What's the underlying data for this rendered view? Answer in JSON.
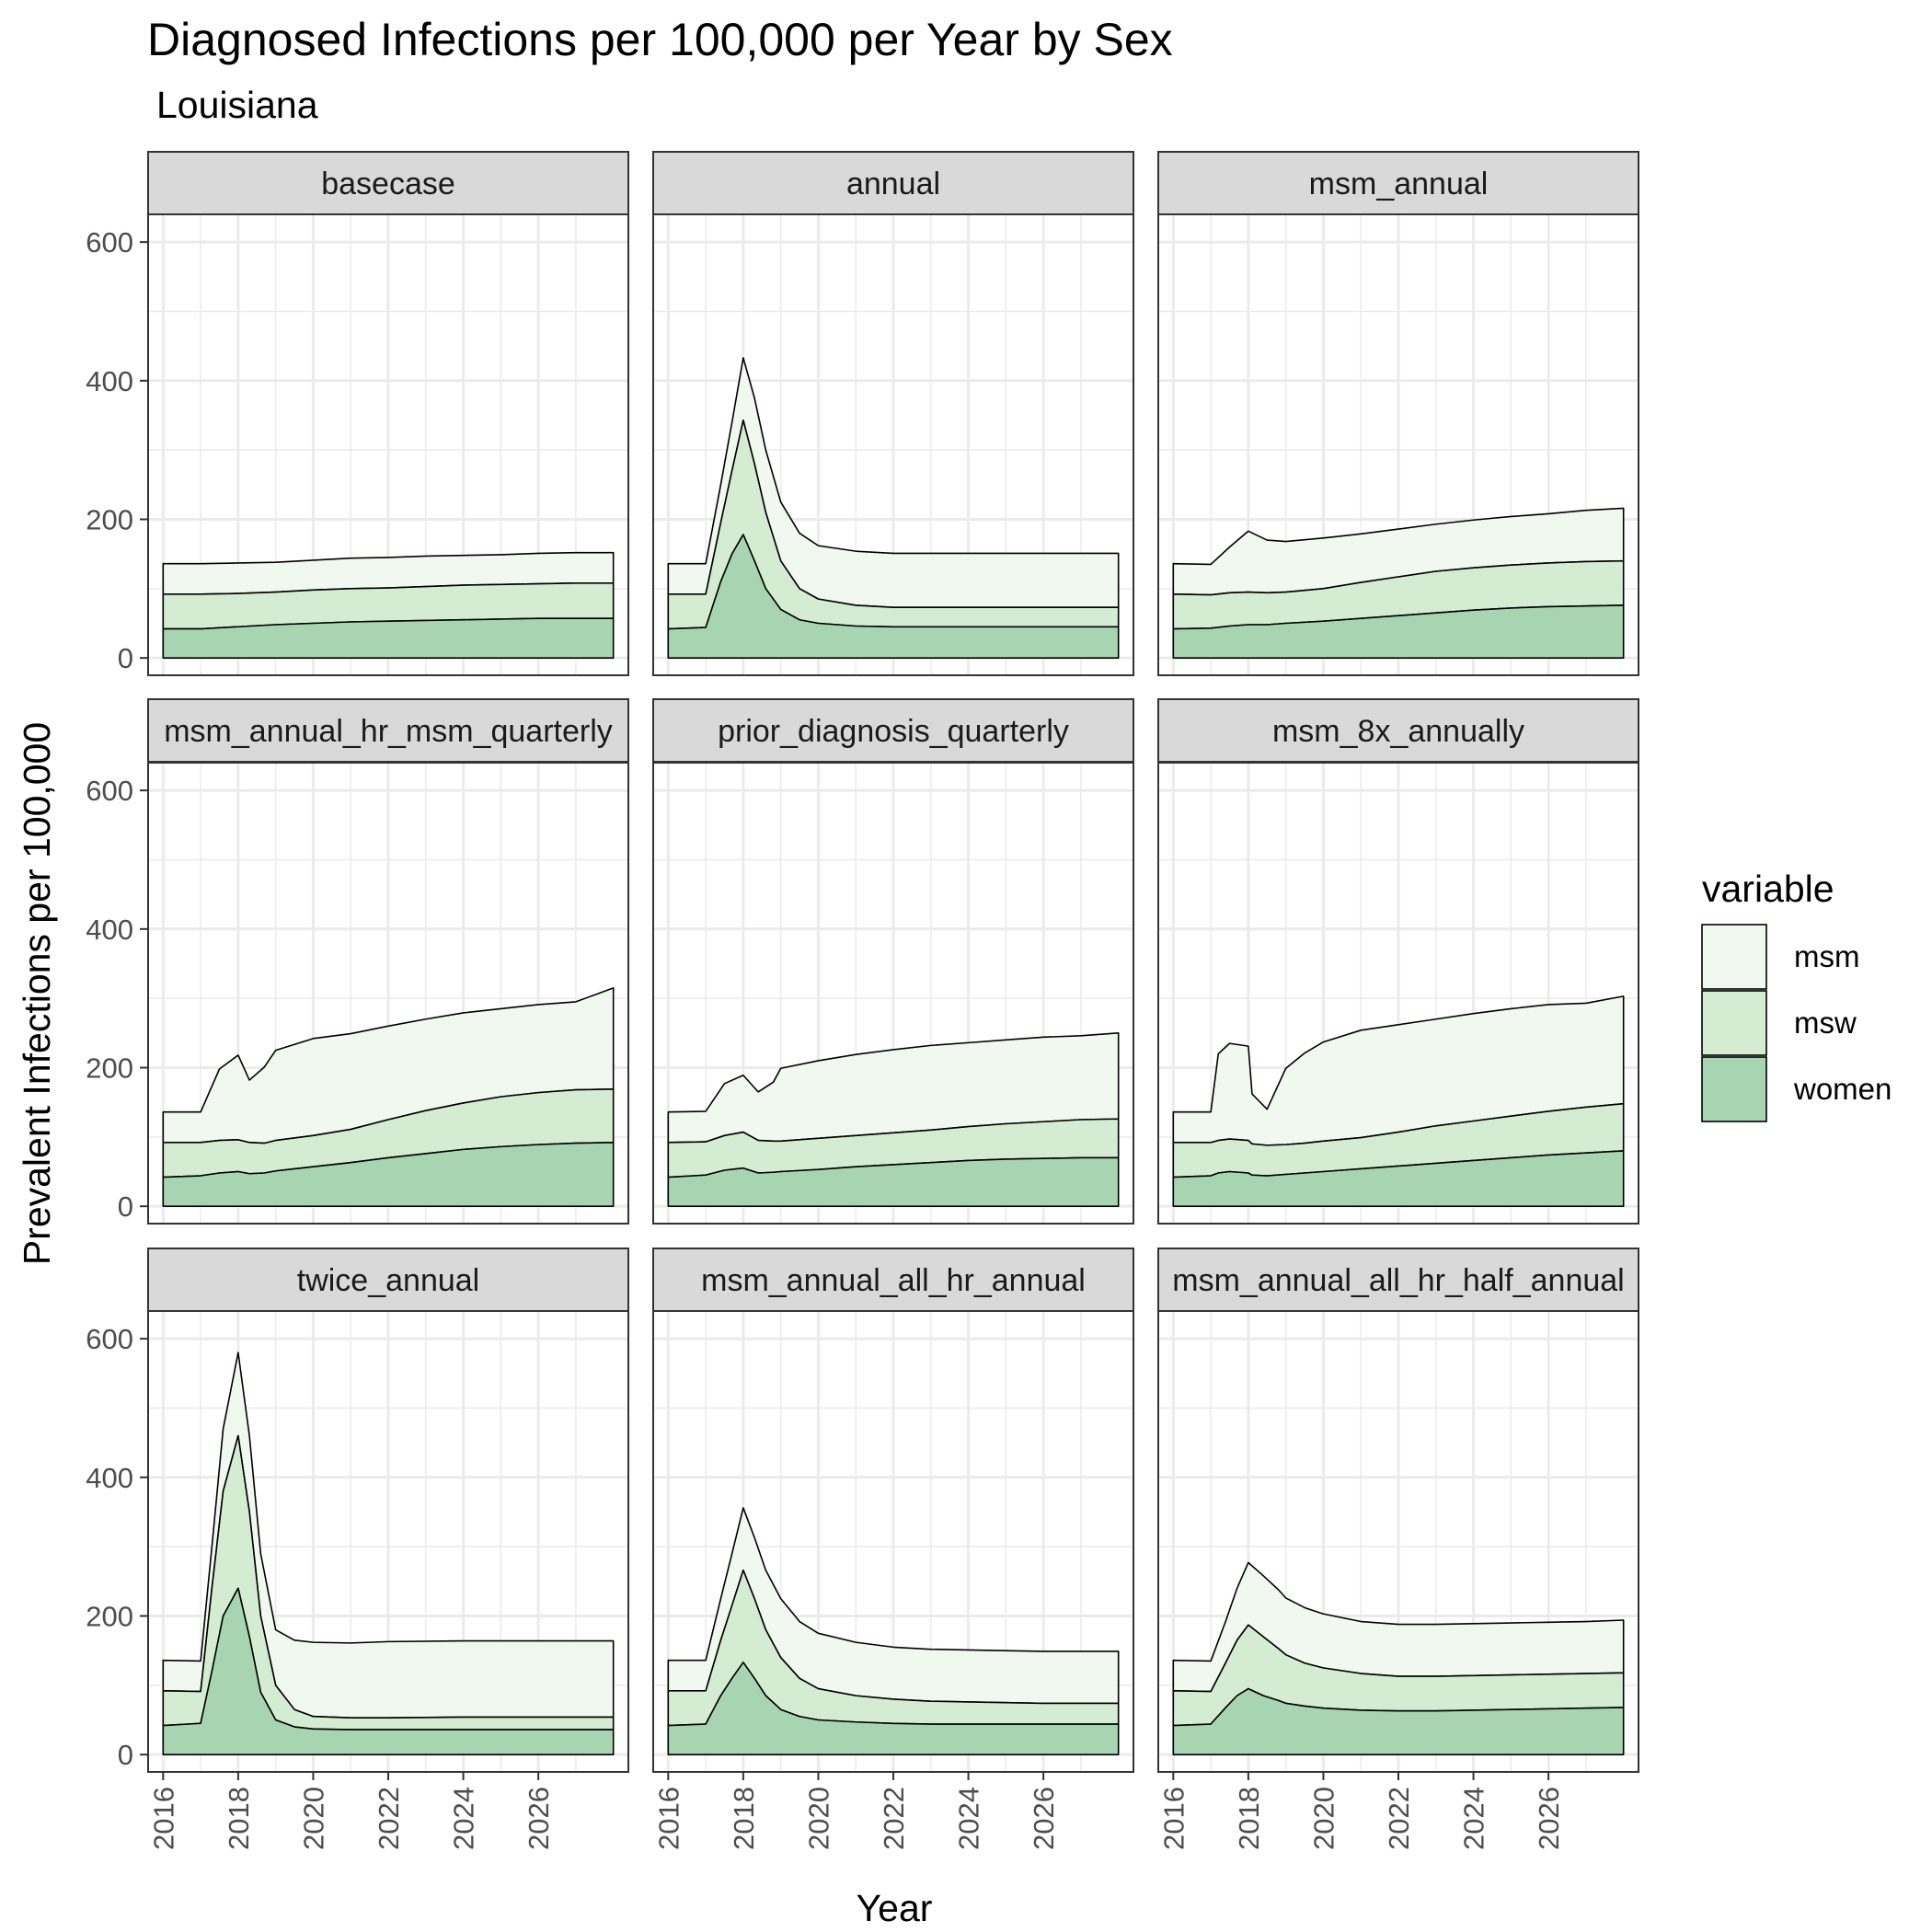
{
  "chart_data": {
    "type": "area",
    "stacked": true,
    "title": "Diagnosed Infections per 100,000 per Year by Sex",
    "subtitle": "Louisiana",
    "xlabel": "Year",
    "ylabel": "Prevalent Infections per 100,000",
    "xlim": [
      2015.6,
      2028.4
    ],
    "ylim": [
      -25,
      640
    ],
    "xticks": [
      2016,
      2018,
      2020,
      2022,
      2024,
      2026
    ],
    "yticks": [
      0,
      200,
      400,
      600
    ],
    "grid": true,
    "legend": {
      "title": "variable",
      "position": "right",
      "entries": [
        "msm",
        "msw",
        "women"
      ]
    },
    "colors": {
      "women": "#a8d5b1",
      "msw": "#d4ecd1",
      "msm": "#f0f8ef",
      "outline": "#000000",
      "strip_bg": "#d9d9d9",
      "grid": "#ebebeb"
    },
    "panels": [
      {
        "name": "basecase",
        "x": [
          2016,
          2017,
          2018,
          2019,
          2020,
          2021,
          2022,
          2023,
          2024,
          2025,
          2026,
          2027,
          2028
        ],
        "women": [
          42,
          42,
          45,
          48,
          50,
          52,
          53,
          54,
          55,
          56,
          57,
          57,
          57
        ],
        "msw": [
          50,
          50,
          48,
          47,
          48,
          48,
          48,
          49,
          50,
          50,
          50,
          51,
          51
        ],
        "msm": [
          44,
          44,
          44,
          43,
          43,
          44,
          44,
          44,
          43,
          43,
          44,
          44,
          44
        ]
      },
      {
        "name": "annual",
        "x": [
          2016,
          2017,
          2017.4,
          2017.7,
          2018,
          2018.3,
          2018.6,
          2019,
          2019.5,
          2020,
          2021,
          2022,
          2023,
          2024,
          2025,
          2026,
          2027,
          2028
        ],
        "women": [
          42,
          44,
          110,
          150,
          178,
          140,
          100,
          70,
          55,
          50,
          46,
          45,
          45,
          45,
          45,
          45,
          45,
          45
        ],
        "msw": [
          50,
          48,
          85,
          120,
          165,
          140,
          110,
          70,
          45,
          35,
          30,
          28,
          28,
          28,
          28,
          28,
          28,
          28
        ],
        "msm": [
          44,
          44,
          55,
          70,
          90,
          95,
          90,
          85,
          80,
          77,
          78,
          78,
          78,
          78,
          78,
          78,
          78,
          78
        ]
      },
      {
        "name": "msm_annual",
        "x": [
          2016,
          2017,
          2017.5,
          2018,
          2018.5,
          2019,
          2020,
          2021,
          2022,
          2023,
          2024,
          2025,
          2026,
          2027,
          2028
        ],
        "women": [
          42,
          43,
          46,
          48,
          48,
          50,
          53,
          57,
          61,
          65,
          69,
          72,
          74,
          75,
          76
        ],
        "msw": [
          50,
          48,
          48,
          47,
          46,
          45,
          47,
          52,
          56,
          60,
          61,
          62,
          63,
          64,
          64
        ],
        "msm": [
          44,
          44,
          66,
          88,
          76,
          73,
          73,
          70,
          69,
          68,
          69,
          70,
          71,
          74,
          76
        ]
      },
      {
        "name": "msm_annual_hr_msm_quarterly",
        "x": [
          2016,
          2017,
          2017.5,
          2018,
          2018.3,
          2018.7,
          2019,
          2020,
          2021,
          2022,
          2023,
          2024,
          2025,
          2026,
          2027,
          2028
        ],
        "women": [
          42,
          44,
          48,
          50,
          47,
          48,
          51,
          57,
          63,
          70,
          76,
          82,
          86,
          89,
          91,
          92
        ],
        "msw": [
          50,
          48,
          47,
          46,
          45,
          43,
          44,
          45,
          48,
          55,
          62,
          67,
          72,
          75,
          77,
          77
        ],
        "msm": [
          44,
          44,
          103,
          122,
          90,
          110,
          130,
          140,
          138,
          135,
          132,
          130,
          127,
          127,
          127,
          146
        ]
      },
      {
        "name": "prior_diagnosis_quarterly",
        "x": [
          2016,
          2017,
          2017.5,
          2018,
          2018.4,
          2018.8,
          2019,
          2020,
          2021,
          2022,
          2023,
          2024,
          2025,
          2026,
          2027,
          2028
        ],
        "women": [
          42,
          45,
          52,
          55,
          48,
          49,
          50,
          53,
          57,
          60,
          63,
          66,
          68,
          69,
          70,
          70
        ],
        "msw": [
          50,
          48,
          50,
          52,
          47,
          45,
          44,
          45,
          45,
          46,
          47,
          49,
          51,
          53,
          55,
          56
        ],
        "msm": [
          44,
          44,
          75,
          82,
          70,
          85,
          105,
          112,
          117,
          120,
          122,
          121,
          121,
          122,
          121,
          124
        ]
      },
      {
        "name": "msm_8x_annually",
        "x": [
          2016,
          2017,
          2017.2,
          2017.5,
          2018,
          2018.1,
          2018.5,
          2019,
          2019.5,
          2020,
          2021,
          2022,
          2023,
          2024,
          2025,
          2026,
          2027,
          2028
        ],
        "women": [
          42,
          44,
          48,
          50,
          48,
          45,
          44,
          46,
          48,
          50,
          54,
          58,
          62,
          66,
          70,
          74,
          77,
          80
        ],
        "msw": [
          50,
          48,
          47,
          47,
          47,
          45,
          44,
          43,
          43,
          44,
          45,
          49,
          54,
          57,
          60,
          63,
          66,
          68
        ],
        "msm": [
          44,
          44,
          125,
          138,
          136,
          72,
          52,
          110,
          130,
          143,
          155,
          155,
          154,
          155,
          155,
          154,
          150,
          155
        ]
      },
      {
        "name": "twice_annual",
        "x": [
          2016,
          2017,
          2017.3,
          2017.6,
          2018,
          2018.3,
          2018.6,
          2019,
          2019.5,
          2020,
          2021,
          2022,
          2024,
          2026,
          2028
        ],
        "women": [
          42,
          45,
          120,
          200,
          240,
          170,
          90,
          50,
          40,
          37,
          36,
          36,
          36,
          36,
          36
        ],
        "msw": [
          50,
          46,
          120,
          180,
          220,
          180,
          110,
          50,
          25,
          18,
          17,
          17,
          18,
          18,
          18
        ],
        "msm": [
          44,
          44,
          60,
          90,
          120,
          110,
          90,
          80,
          100,
          107,
          108,
          110,
          110,
          110,
          110
        ]
      },
      {
        "name": "msm_annual_all_hr_annual",
        "x": [
          2016,
          2017,
          2017.4,
          2017.7,
          2018,
          2018.3,
          2018.6,
          2019,
          2019.5,
          2020,
          2021,
          2022,
          2023,
          2024,
          2025,
          2026,
          2027,
          2028
        ],
        "women": [
          42,
          44,
          85,
          110,
          133,
          110,
          85,
          65,
          55,
          50,
          47,
          45,
          44,
          44,
          44,
          44,
          44,
          44
        ],
        "msw": [
          50,
          48,
          80,
          105,
          133,
          115,
          95,
          75,
          55,
          45,
          38,
          35,
          33,
          32,
          31,
          30,
          30,
          30
        ],
        "msm": [
          44,
          44,
          60,
          75,
          90,
          88,
          86,
          85,
          82,
          80,
          77,
          75,
          75,
          75,
          75,
          75,
          75,
          75
        ]
      },
      {
        "name": "msm_annual_all_hr_half_annual",
        "x": [
          2016,
          2017,
          2017.4,
          2017.7,
          2018,
          2018.4,
          2018.8,
          2019,
          2019.5,
          2020,
          2021,
          2022,
          2023,
          2024,
          2025,
          2026,
          2027,
          2028
        ],
        "women": [
          42,
          44,
          68,
          85,
          95,
          85,
          78,
          74,
          70,
          67,
          64,
          63,
          63,
          64,
          65,
          66,
          67,
          68
        ],
        "msw": [
          50,
          47,
          65,
          80,
          92,
          85,
          75,
          70,
          62,
          58,
          53,
          50,
          50,
          50,
          50,
          50,
          50,
          50
        ],
        "msm": [
          44,
          44,
          60,
          75,
          90,
          88,
          85,
          82,
          80,
          78,
          75,
          75,
          75,
          75,
          75,
          75,
          75,
          76
        ]
      }
    ]
  }
}
